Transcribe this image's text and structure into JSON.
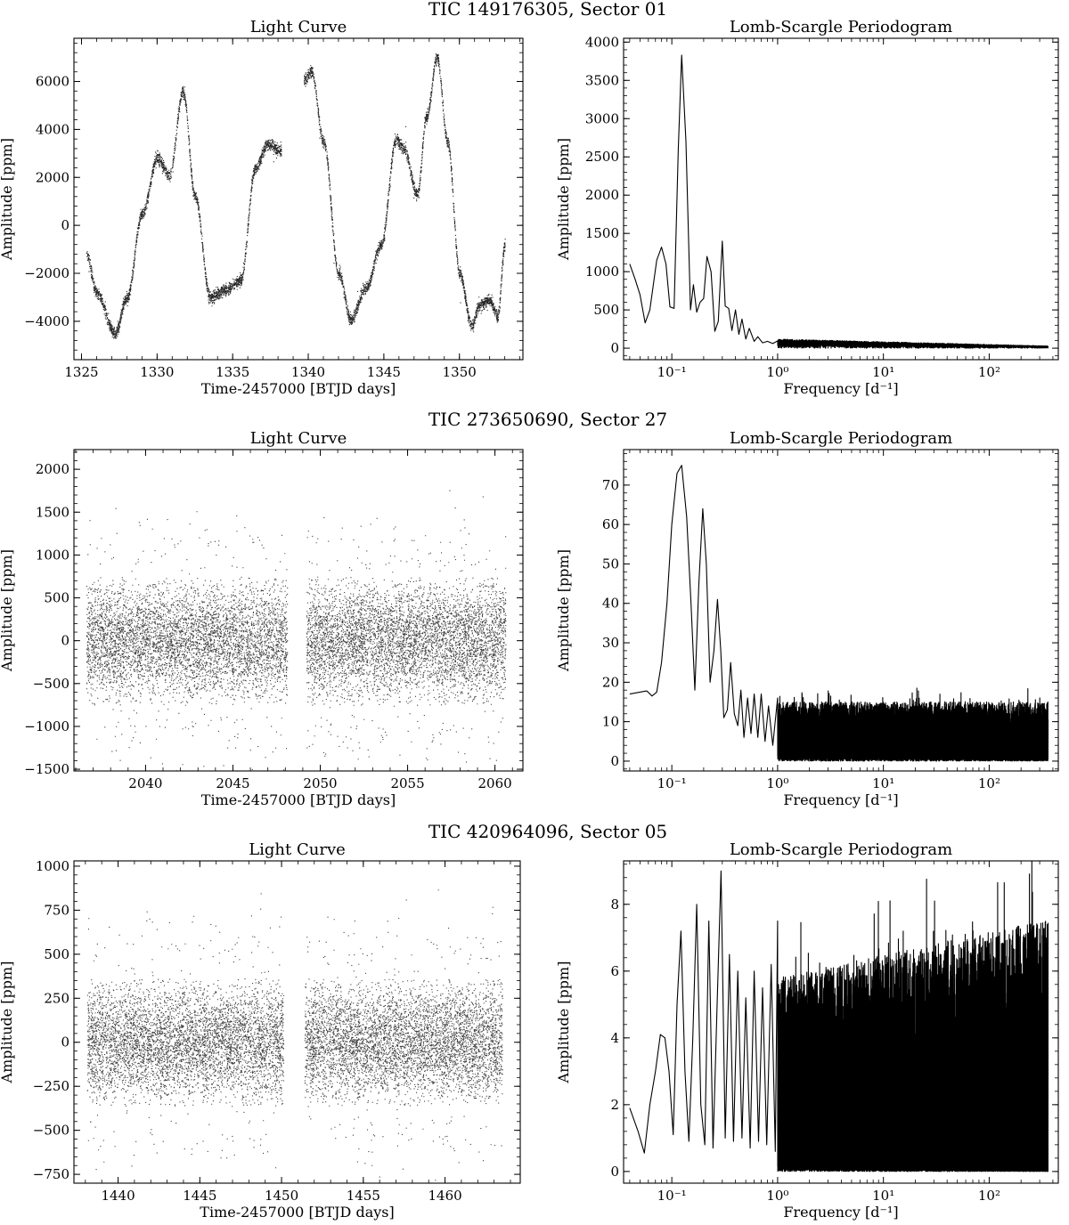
{
  "chart_data": [
    {
      "row_title": "TIC 149176305, Sector 01",
      "light_curve": {
        "type": "scatter",
        "title": "Light Curve",
        "xlabel": "Time-2457000 [BTJD days]",
        "ylabel": "Amplitude [ppm]",
        "xlim": [
          1324.5,
          1354.2
        ],
        "ylim": [
          -5600,
          7800
        ],
        "xticks": [
          1325,
          1330,
          1335,
          1340,
          1345,
          1350
        ],
        "yticks": [
          -4000,
          -2000,
          0,
          2000,
          4000,
          6000
        ],
        "ytick_labels": [
          "−4000",
          "−2000",
          "0",
          "2000",
          "4000",
          "6000"
        ],
        "segments": [
          [
            1325.3,
            1338.2
          ],
          [
            1339.7,
            1353.0
          ]
        ],
        "trend": {
          "t": [
            1325.3,
            1326.0,
            1327.2,
            1328.0,
            1329.0,
            1330.0,
            1330.8,
            1331.7,
            1332.5,
            1333.5,
            1334.5,
            1335.5,
            1336.5,
            1337.3,
            1338.2,
            1339.7,
            1340.2,
            1341.0,
            1342.0,
            1342.8,
            1343.8,
            1344.8,
            1345.8,
            1346.3,
            1347.2,
            1347.8,
            1348.5,
            1349.2,
            1350.0,
            1350.8,
            1351.3,
            1352.0,
            1352.5,
            1353.0
          ],
          "y": [
            -1200,
            -2800,
            -4500,
            -3000,
            500,
            2800,
            2100,
            5600,
            1200,
            -3000,
            -2700,
            -2300,
            2400,
            3400,
            3100,
            6100,
            6400,
            3500,
            -2000,
            -3900,
            -2600,
            -800,
            3600,
            3200,
            1300,
            4500,
            7000,
            3500,
            -2000,
            -4200,
            -3300,
            -3100,
            -3800,
            -800
          ]
        },
        "scatter_width": 260,
        "n_points": 5200,
        "outlier_fraction": 0.003
      },
      "periodogram": {
        "type": "line",
        "title": "Lomb-Scargle Periodogram",
        "xlabel": "Frequency [d⁻¹]",
        "ylabel": "Amplitude [ppm]",
        "xscale": "log",
        "xlim": [
          0.035,
          450
        ],
        "ylim": [
          -150,
          4050
        ],
        "xticks": [
          0.1,
          1,
          10,
          100
        ],
        "xtick_labels": [
          "10⁻¹",
          "10⁰",
          "10¹",
          "10²"
        ],
        "yticks": [
          0,
          500,
          1000,
          1500,
          2000,
          2500,
          3000,
          3500,
          4000
        ],
        "ytick_labels": [
          "0",
          "500",
          "1000",
          "1500",
          "2000",
          "2500",
          "3000",
          "3500",
          "4000"
        ],
        "peaks": {
          "f": [
            0.04,
            0.045,
            0.05,
            0.056,
            0.062,
            0.072,
            0.08,
            0.088,
            0.096,
            0.105,
            0.115,
            0.124,
            0.136,
            0.15,
            0.16,
            0.172,
            0.185,
            0.2,
            0.215,
            0.235,
            0.255,
            0.275,
            0.3,
            0.32,
            0.345,
            0.37,
            0.4,
            0.43,
            0.46,
            0.5,
            0.54,
            0.6,
            0.65,
            0.72,
            0.8,
            0.9,
            1.0
          ],
          "a": [
            1100,
            900,
            700,
            330,
            500,
            1150,
            1320,
            1100,
            540,
            520,
            2600,
            3830,
            2700,
            500,
            830,
            470,
            600,
            650,
            1200,
            1000,
            220,
            350,
            1400,
            550,
            520,
            230,
            500,
            180,
            380,
            120,
            260,
            90,
            150,
            70,
            90,
            60,
            95
          ]
        },
        "tail": {
          "f_start": 1.0,
          "f_end": 360,
          "base_start": 80,
          "base_end": 20,
          "noise_start": 40,
          "noise_end": 8,
          "samples": 1400
        }
      }
    },
    {
      "row_title": "TIC 273650690, Sector 27",
      "light_curve": {
        "type": "scatter",
        "title": "Light Curve",
        "xlabel": "Time-2457000 [BTJD days]",
        "ylabel": "Amplitude [ppm]",
        "xlim": [
          2035.9,
          2061.6
        ],
        "ylim": [
          -1520,
          2230
        ],
        "xticks": [
          2040,
          2045,
          2050,
          2055,
          2060
        ],
        "yticks": [
          -1500,
          -1000,
          -500,
          0,
          500,
          1000,
          1500,
          2000
        ],
        "ytick_labels": [
          "−1500",
          "−1000",
          "−500",
          "0",
          "500",
          "1000",
          "1500",
          "2000"
        ],
        "segments": [
          [
            2036.6,
            2048.1
          ],
          [
            2049.2,
            2060.6
          ]
        ],
        "noise_sigma": 340,
        "n_points": 11000
      },
      "periodogram": {
        "type": "line",
        "title": "Lomb-Scargle Periodogram",
        "xlabel": "Frequency [d⁻¹]",
        "ylabel": "Amplitude [ppm]",
        "xscale": "log",
        "xlim": [
          0.035,
          450
        ],
        "ylim": [
          -2.5,
          79
        ],
        "xticks": [
          0.1,
          1,
          10,
          100
        ],
        "xtick_labels": [
          "10⁻¹",
          "10⁰",
          "10¹",
          "10²"
        ],
        "yticks": [
          0,
          10,
          20,
          30,
          40,
          50,
          60,
          70
        ],
        "ytick_labels": [
          "0",
          "10",
          "20",
          "30",
          "40",
          "50",
          "60",
          "70"
        ],
        "peaks": {
          "f": [
            0.04,
            0.05,
            0.058,
            0.065,
            0.072,
            0.08,
            0.09,
            0.1,
            0.112,
            0.124,
            0.138,
            0.152,
            0.165,
            0.18,
            0.196,
            0.212,
            0.23,
            0.25,
            0.27,
            0.29,
            0.31,
            0.335,
            0.36,
            0.39,
            0.42,
            0.45,
            0.48,
            0.52,
            0.56,
            0.6,
            0.65,
            0.7,
            0.76,
            0.82,
            0.9,
            1.0
          ],
          "a": [
            17,
            17.5,
            17.8,
            16.5,
            17.5,
            25,
            40,
            60,
            73,
            75,
            62,
            40,
            18,
            45,
            64,
            50,
            20,
            28,
            41,
            28,
            11,
            13,
            25,
            12,
            9,
            18,
            6,
            16,
            7,
            17,
            6,
            17,
            5,
            14,
            4,
            16
          ]
        },
        "tail": {
          "f_start": 1.0,
          "f_end": 360,
          "base_start": 3,
          "base_end": 1,
          "noise_start": 12,
          "noise_end": 14,
          "samples": 4200
        }
      }
    },
    {
      "row_title": "TIC 420964096, Sector 05",
      "light_curve": {
        "type": "scatter",
        "title": "Light Curve",
        "xlabel": "Time-2457000 [BTJD days]",
        "ylabel": "Amplitude [ppm]",
        "xlim": [
          1437.3,
          1464.6
        ],
        "ylim": [
          -800,
          1030
        ],
        "xticks": [
          1440,
          1445,
          1450,
          1455,
          1460
        ],
        "yticks": [
          -750,
          -500,
          -250,
          0,
          250,
          500,
          750,
          1000
        ],
        "ytick_labels": [
          "−750",
          "−500",
          "−250",
          "0",
          "250",
          "500",
          "750",
          "1000"
        ],
        "segments": [
          [
            1438.1,
            1450.1
          ],
          [
            1451.4,
            1463.5
          ]
        ],
        "noise_sigma": 165,
        "n_points": 11000
      },
      "periodogram": {
        "type": "line",
        "title": "Lomb-Scargle Periodogram",
        "xlabel": "Frequency [d⁻¹]",
        "ylabel": "Amplitude [ppm]",
        "xscale": "log",
        "xlim": [
          0.035,
          450
        ],
        "ylim": [
          -0.35,
          9.3
        ],
        "xticks": [
          0.1,
          1,
          10,
          100
        ],
        "xtick_labels": [
          "10⁻¹",
          "10⁰",
          "10¹",
          "10²"
        ],
        "yticks": [
          0,
          2,
          4,
          6,
          8
        ],
        "ytick_labels": [
          "0",
          "2",
          "4",
          "6",
          "8"
        ],
        "peaks": {
          "f": [
            0.04,
            0.048,
            0.055,
            0.062,
            0.07,
            0.078,
            0.086,
            0.094,
            0.103,
            0.112,
            0.122,
            0.133,
            0.145,
            0.158,
            0.172,
            0.188,
            0.205,
            0.224,
            0.245,
            0.268,
            0.292,
            0.32,
            0.35,
            0.383,
            0.42,
            0.46,
            0.5,
            0.55,
            0.6,
            0.66,
            0.72,
            0.79,
            0.87,
            0.95,
            1.0
          ],
          "a": [
            1.9,
            1.2,
            0.55,
            2.0,
            3.0,
            4.1,
            4.0,
            3.0,
            1.1,
            5.0,
            7.2,
            3.0,
            0.9,
            4.0,
            8.0,
            2.0,
            0.8,
            7.5,
            0.7,
            5.0,
            9.0,
            1.0,
            6.5,
            0.9,
            6.0,
            1.0,
            5.2,
            0.7,
            6.0,
            0.9,
            5.5,
            0.8,
            6.2,
            0.6,
            7.5
          ]
        },
        "tail": {
          "f_start": 1.0,
          "f_end": 360,
          "base_start": 0.3,
          "base_end": 0.05,
          "noise_start": 5.5,
          "noise_end": 7.5,
          "samples": 4800
        }
      }
    }
  ]
}
